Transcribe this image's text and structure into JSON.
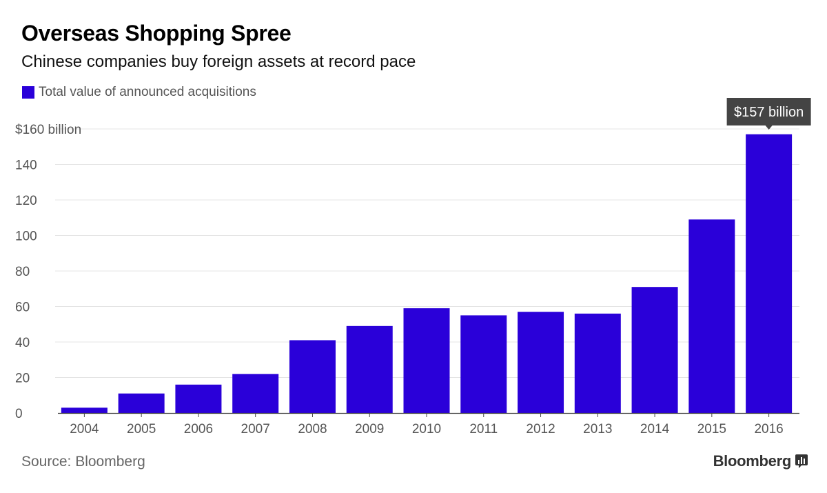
{
  "title": "Overseas Shopping Spree",
  "subtitle": "Chinese companies buy foreign assets at record pace",
  "legend": {
    "label": "Total value of announced acquisitions"
  },
  "source": "Source: Bloomberg",
  "brand": "Bloomberg",
  "colors": {
    "bar": "#2a00d9",
    "grid": "#e4e4e4",
    "axis": "#444444",
    "tick_text": "#555555",
    "callout_bg": "#444444",
    "callout_text": "#ffffff"
  },
  "chart_data": {
    "type": "bar",
    "categories": [
      "2004",
      "2005",
      "2006",
      "2007",
      "2008",
      "2009",
      "2010",
      "2011",
      "2012",
      "2013",
      "2014",
      "2015",
      "2016"
    ],
    "series": [
      {
        "name": "Total value of announced acquisitions",
        "values": [
          3,
          11,
          16,
          22,
          41,
          49,
          59,
          55,
          57,
          56,
          71,
          109,
          157
        ]
      }
    ],
    "ylim": [
      0,
      160
    ],
    "yticks": [
      0,
      20,
      40,
      60,
      80,
      100,
      120,
      140,
      160
    ],
    "ytick_labels": [
      "0",
      "20",
      "40",
      "60",
      "80",
      "100",
      "120",
      "140",
      "$160 billion"
    ],
    "grid": true,
    "legend_position": "top-left",
    "annotation": {
      "category": "2016",
      "text": "$157 billion"
    }
  }
}
